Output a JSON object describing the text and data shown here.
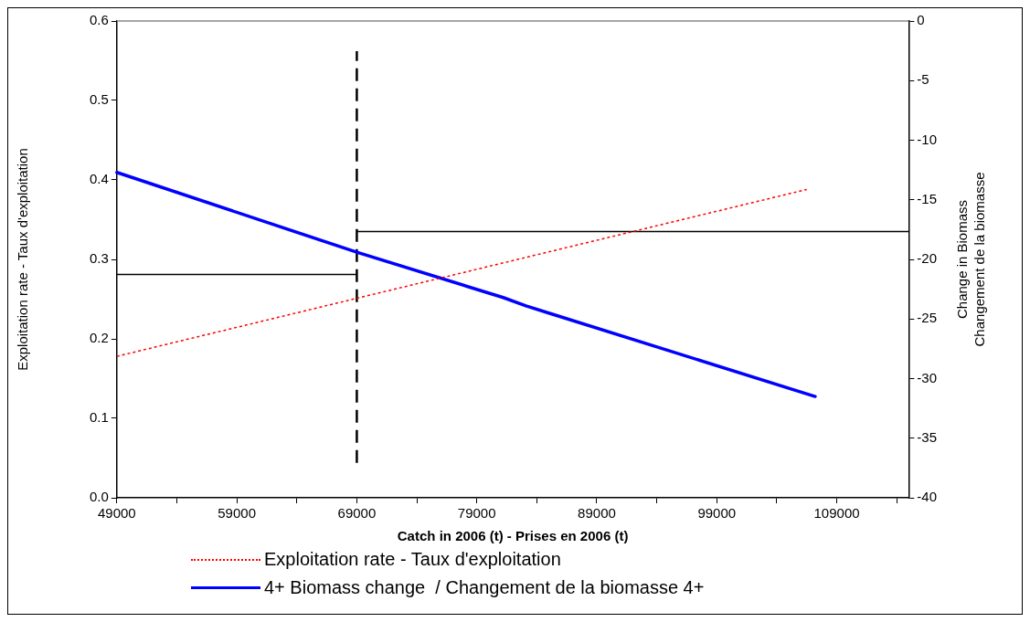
{
  "chart_data": {
    "type": "line",
    "xlabel": "Catch in 2006 (t) - Prises en 2006 (t)",
    "ylabel": "Exploitation rate - Taux d'exploitation",
    "y2label": "Change in Biomass\nChangement de la biomasse",
    "xlim": [
      49000,
      115000
    ],
    "xticks": [
      49000,
      {
        "value": 54000,
        "label": null
      },
      59000,
      {
        "value": 64000,
        "label": null
      },
      69000,
      {
        "value": 74000,
        "label": null
      },
      79000,
      {
        "value": 84000,
        "label": null
      },
      89000,
      {
        "value": 94000,
        "label": null
      },
      99000,
      {
        "value": 104000,
        "label": null
      },
      109000,
      {
        "value": 114000,
        "label": null
      }
    ],
    "ylim": [
      0,
      0.6
    ],
    "yticks": [
      {
        "value": 0,
        "label": "0.0"
      },
      0.1,
      0.2,
      0.3,
      0.4,
      0.5,
      0.6
    ],
    "y2lim": [
      -40,
      0
    ],
    "y2ticks": [
      -40,
      -35,
      -30,
      -25,
      -20,
      -15,
      -10,
      -5,
      0
    ],
    "legend": "bottom",
    "series": [
      {
        "name": "Exploitation rate - Taux d'exploitation",
        "color": "#ff0000",
        "line_style": "dotted",
        "x": [
          49000,
          106500
        ],
        "values": [
          0.178,
          0.388
        ]
      },
      {
        "name": "4+ Biomass change  / Changement de la biomasse 4+",
        "color": "#0000ff",
        "axis": "y2",
        "line_style": "solid",
        "x": [
          49000,
          69000,
          81200,
          83100,
          85000,
          107200
        ],
        "values": [
          -12.7,
          -19.4,
          -23.2,
          -23.9,
          -24.5,
          -31.5
        ]
      },
      {
        "color": "#000000",
        "line_style": "dashed",
        "x": [
          69000,
          69000
        ],
        "values": [
          0.044,
          0.562
        ]
      },
      {
        "color": "#000000",
        "line_style": "solid",
        "x": [
          49000,
          69000
        ],
        "values": [
          0.281,
          0.281
        ]
      },
      {
        "color": "#000000",
        "line_style": "solid",
        "x": [
          69000,
          115000
        ],
        "values": [
          0.335,
          0.335
        ]
      }
    ]
  }
}
